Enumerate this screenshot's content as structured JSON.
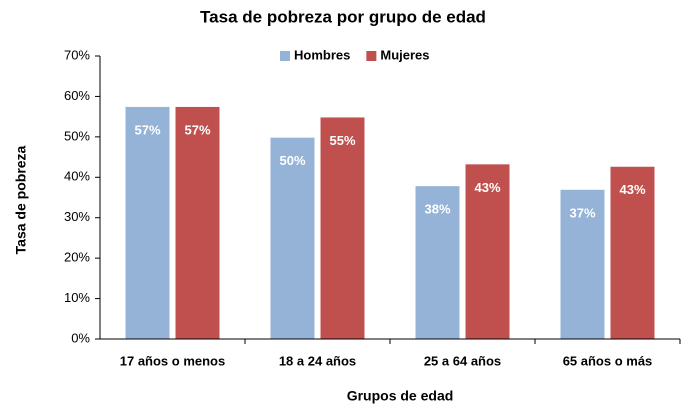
{
  "chart_data": {
    "type": "bar",
    "title": "Tasa de pobreza por grupo de edad",
    "xlabel": "Grupos de edad",
    "ylabel": "Tasa de pobreza",
    "categories": [
      "17 años o menos",
      "18 a 24 años",
      "25 a 64 años",
      "65 años o más"
    ],
    "series": [
      {
        "name": "Hombres",
        "color": "#95b3d7",
        "values": [
          57.4,
          49.8,
          37.8,
          36.9
        ],
        "value_labels": [
          "57%",
          "50%",
          "38%",
          "37%"
        ]
      },
      {
        "name": "Mujeres",
        "color": "#c0504d",
        "values": [
          57.4,
          54.8,
          43.2,
          42.6
        ],
        "value_labels": [
          "57%",
          "55%",
          "43%",
          "43%"
        ]
      }
    ],
    "ylim": [
      0,
      70
    ],
    "yticks": [
      {
        "value": 0,
        "label": "0%"
      },
      {
        "value": 10,
        "label": "10%"
      },
      {
        "value": 20,
        "label": "20%"
      },
      {
        "value": 30,
        "label": "30%"
      },
      {
        "value": 40,
        "label": "40%"
      },
      {
        "value": 50,
        "label": "50%"
      },
      {
        "value": 60,
        "label": "60%"
      },
      {
        "value": 70,
        "label": "70%"
      }
    ],
    "grid": false,
    "legend": "top"
  }
}
